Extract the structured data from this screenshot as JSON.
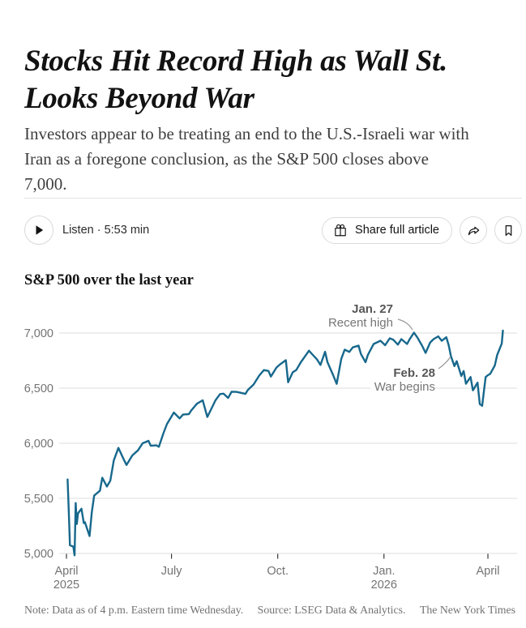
{
  "article": {
    "headline_lines": [
      "Stocks Hit Record High as Wall St.",
      "Looks Beyond War"
    ],
    "summary_lines": [
      "Investors appear to be treating an end to the U.S.-Israeli war with",
      "Iran as a foregone conclusion, as the S&P 500 closes above",
      "7,000."
    ],
    "listen_label": "Listen · 5:53 min",
    "share_button_label": "Share full article"
  },
  "chart": {
    "title": "S&P 500 over the last year",
    "note_prefix": "Note: Data as of 4 p.m. Eastern time Wednesday.",
    "note_source": "Source: LSEG Data & Analytics.",
    "note_credit": "The New York Times"
  },
  "chart_data": {
    "type": "line",
    "title": "S&P 500 over the last year",
    "line_color": "#17688c",
    "grid": "horizontal",
    "legend": "none",
    "x_domain_start": "2025-04-01",
    "x_domain_end": "2026-04-01",
    "ylim": [
      5000,
      7000
    ],
    "y_ticks": [
      7000,
      6500,
      6000,
      5500,
      5000
    ],
    "y_tick_labels": [
      "7,000",
      "6,500",
      "6,000",
      "5,500",
      "5,000"
    ],
    "x_ticks": [
      {
        "date": "2025-04-01",
        "lines": [
          "April",
          "2025"
        ]
      },
      {
        "date": "2025-07-01",
        "lines": [
          "July"
        ]
      },
      {
        "date": "2025-10-01",
        "lines": [
          "Oct."
        ]
      },
      {
        "date": "2026-01-01",
        "lines": [
          "Jan.",
          "2026"
        ]
      },
      {
        "date": "2026-04-01",
        "lines": [
          "April"
        ]
      }
    ],
    "annotations": [
      {
        "date": "2026-01-27",
        "value": 7004,
        "label": "Jan. 27",
        "sublabel": "Recent high"
      },
      {
        "date": "2026-02-28",
        "value": 6790,
        "label": "Feb. 28",
        "sublabel": "War begins"
      }
    ],
    "series": [
      {
        "name": "S&P 500",
        "points": [
          [
            "2025-04-02",
            5671
          ],
          [
            "2025-04-03",
            5396
          ],
          [
            "2025-04-04",
            5074
          ],
          [
            "2025-04-07",
            5062
          ],
          [
            "2025-04-08",
            4983
          ],
          [
            "2025-04-09",
            5457
          ],
          [
            "2025-04-10",
            5268
          ],
          [
            "2025-04-11",
            5363
          ],
          [
            "2025-04-14",
            5406
          ],
          [
            "2025-04-16",
            5276
          ],
          [
            "2025-04-17",
            5283
          ],
          [
            "2025-04-21",
            5158
          ],
          [
            "2025-04-23",
            5376
          ],
          [
            "2025-04-25",
            5525
          ],
          [
            "2025-04-30",
            5569
          ],
          [
            "2025-05-02",
            5687
          ],
          [
            "2025-05-06",
            5607
          ],
          [
            "2025-05-09",
            5660
          ],
          [
            "2025-05-12",
            5844
          ],
          [
            "2025-05-16",
            5958
          ],
          [
            "2025-05-21",
            5845
          ],
          [
            "2025-05-23",
            5803
          ],
          [
            "2025-05-28",
            5889
          ],
          [
            "2025-06-02",
            5936
          ],
          [
            "2025-06-06",
            6000
          ],
          [
            "2025-06-11",
            6022
          ],
          [
            "2025-06-13",
            5977
          ],
          [
            "2025-06-18",
            5981
          ],
          [
            "2025-06-20",
            5968
          ],
          [
            "2025-06-24",
            6092
          ],
          [
            "2025-06-27",
            6173
          ],
          [
            "2025-07-03",
            6279
          ],
          [
            "2025-07-08",
            6226
          ],
          [
            "2025-07-11",
            6260
          ],
          [
            "2025-07-16",
            6264
          ],
          [
            "2025-07-18",
            6297
          ],
          [
            "2025-07-23",
            6359
          ],
          [
            "2025-07-28",
            6390
          ],
          [
            "2025-08-01",
            6238
          ],
          [
            "2025-08-06",
            6345
          ],
          [
            "2025-08-08",
            6389
          ],
          [
            "2025-08-12",
            6446
          ],
          [
            "2025-08-15",
            6450
          ],
          [
            "2025-08-19",
            6411
          ],
          [
            "2025-08-22",
            6467
          ],
          [
            "2025-08-26",
            6466
          ],
          [
            "2025-08-29",
            6460
          ],
          [
            "2025-09-03",
            6448
          ],
          [
            "2025-09-05",
            6482
          ],
          [
            "2025-09-10",
            6532
          ],
          [
            "2025-09-15",
            6615
          ],
          [
            "2025-09-19",
            6664
          ],
          [
            "2025-09-23",
            6656
          ],
          [
            "2025-09-25",
            6605
          ],
          [
            "2025-09-30",
            6688
          ],
          [
            "2025-10-03",
            6716
          ],
          [
            "2025-10-08",
            6754
          ],
          [
            "2025-10-10",
            6553
          ],
          [
            "2025-10-14",
            6644
          ],
          [
            "2025-10-17",
            6664
          ],
          [
            "2025-10-21",
            6735
          ],
          [
            "2025-10-24",
            6780
          ],
          [
            "2025-10-28",
            6840
          ],
          [
            "2025-10-31",
            6805
          ],
          [
            "2025-11-04",
            6760
          ],
          [
            "2025-11-07",
            6710
          ],
          [
            "2025-11-11",
            6830
          ],
          [
            "2025-11-13",
            6737
          ],
          [
            "2025-11-18",
            6617
          ],
          [
            "2025-11-21",
            6539
          ],
          [
            "2025-11-25",
            6766
          ],
          [
            "2025-11-28",
            6849
          ],
          [
            "2025-12-02",
            6829
          ],
          [
            "2025-12-05",
            6870
          ],
          [
            "2025-12-10",
            6886
          ],
          [
            "2025-12-12",
            6810
          ],
          [
            "2025-12-16",
            6735
          ],
          [
            "2025-12-18",
            6800
          ],
          [
            "2025-12-23",
            6901
          ],
          [
            "2025-12-29",
            6930
          ],
          [
            "2026-01-02",
            6890
          ],
          [
            "2026-01-06",
            6952
          ],
          [
            "2026-01-09",
            6940
          ],
          [
            "2026-01-13",
            6895
          ],
          [
            "2026-01-16",
            6945
          ],
          [
            "2026-01-21",
            6901
          ],
          [
            "2026-01-23",
            6940
          ],
          [
            "2026-01-27",
            7004
          ],
          [
            "2026-01-30",
            6958
          ],
          [
            "2026-02-03",
            6885
          ],
          [
            "2026-02-06",
            6820
          ],
          [
            "2026-02-10",
            6915
          ],
          [
            "2026-02-13",
            6945
          ],
          [
            "2026-02-17",
            6970
          ],
          [
            "2026-02-20",
            6930
          ],
          [
            "2026-02-24",
            6962
          ],
          [
            "2026-02-26",
            6890
          ],
          [
            "2026-02-28",
            6790
          ],
          [
            "2026-03-03",
            6700
          ],
          [
            "2026-03-05",
            6745
          ],
          [
            "2026-03-09",
            6610
          ],
          [
            "2026-03-11",
            6655
          ],
          [
            "2026-03-13",
            6540
          ],
          [
            "2026-03-17",
            6601
          ],
          [
            "2026-03-19",
            6480
          ],
          [
            "2026-03-23",
            6550
          ],
          [
            "2026-03-25",
            6355
          ],
          [
            "2026-03-27",
            6340
          ],
          [
            "2026-03-30",
            6601
          ],
          [
            "2026-04-01",
            6618
          ],
          [
            "2026-04-03",
            6630
          ],
          [
            "2026-04-07",
            6705
          ],
          [
            "2026-04-09",
            6800
          ],
          [
            "2026-04-13",
            6905
          ],
          [
            "2026-04-14",
            7022
          ]
        ]
      }
    ]
  }
}
